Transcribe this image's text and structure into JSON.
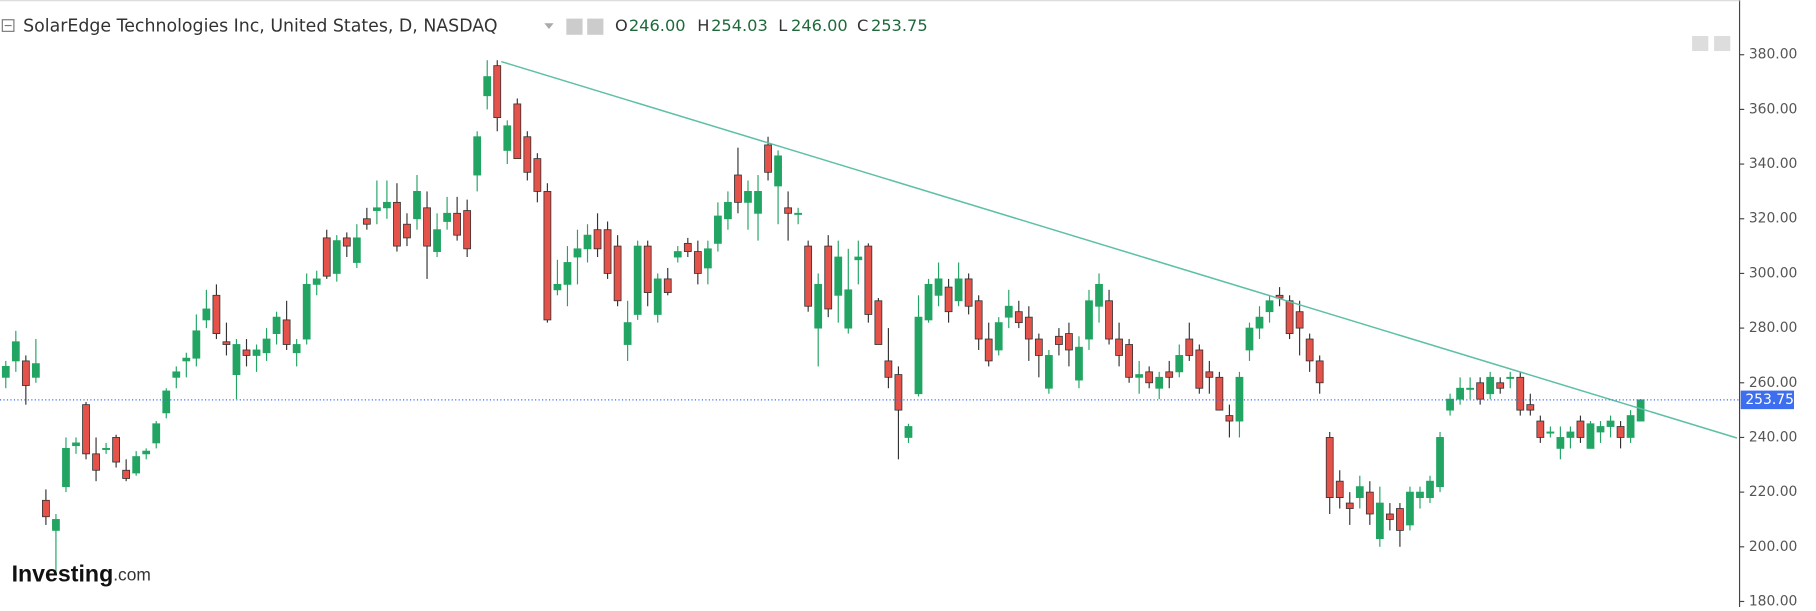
{
  "chart_data": {
    "type": "candlestick",
    "title": "SolarEdge Technologies Inc, United States, D, NASDAQ",
    "header": {
      "o_key": "O",
      "open": "246.00",
      "h_key": "H",
      "high": "254.03",
      "l_key": "L",
      "low": "246.00",
      "c_key": "C",
      "close": "253.75"
    },
    "logo": {
      "brand": "Investing",
      "suffix": ".com"
    },
    "up_color": "#22a463",
    "down_color": "#e5524a",
    "ylim": [
      178,
      400
    ],
    "yticks": [
      {
        "value": 180,
        "label": "180.00"
      },
      {
        "value": 200,
        "label": "200.00"
      },
      {
        "value": 220,
        "label": "220.00"
      },
      {
        "value": 240,
        "label": "240.00"
      },
      {
        "value": 260,
        "label": "260.00"
      },
      {
        "value": 280,
        "label": "280.00"
      },
      {
        "value": 300,
        "label": "300.00"
      },
      {
        "value": 320,
        "label": "320.00"
      },
      {
        "value": 340,
        "label": "340.00"
      },
      {
        "value": 360,
        "label": "360.00"
      },
      {
        "value": 380,
        "label": "380.00"
      }
    ],
    "trendline": {
      "x": [
        49.4,
        172.6
      ],
      "y": [
        377.5,
        239.8
      ],
      "color": "#5dbfa6"
    },
    "last_price_color": "#3d6ef0",
    "ohlc": [
      [
        262,
        268,
        258,
        266
      ],
      [
        268,
        279,
        264,
        275
      ],
      [
        268,
        270,
        252,
        259
      ],
      [
        262,
        276,
        260,
        267
      ],
      [
        217,
        221,
        208,
        211
      ],
      [
        206,
        212,
        191,
        210
      ],
      [
        222,
        240,
        220,
        236
      ],
      [
        237,
        240,
        234,
        238
      ],
      [
        252,
        253,
        232,
        234
      ],
      [
        234,
        240,
        224,
        228
      ],
      [
        236,
        238,
        234,
        236
      ],
      [
        240,
        241,
        229,
        231
      ],
      [
        228,
        232,
        224,
        225
      ],
      [
        227,
        235,
        226,
        233
      ],
      [
        234,
        236,
        232,
        235
      ],
      [
        238,
        246,
        236,
        245
      ],
      [
        249,
        258,
        247,
        257
      ],
      [
        262,
        266,
        258,
        264
      ],
      [
        268,
        271,
        262,
        269
      ],
      [
        269,
        285,
        266,
        279
      ],
      [
        283,
        294,
        280,
        287
      ],
      [
        292,
        296,
        276,
        278
      ],
      [
        275,
        282,
        270,
        274
      ],
      [
        263,
        276,
        254,
        274
      ],
      [
        272,
        276,
        266,
        270
      ],
      [
        270,
        274,
        264,
        272
      ],
      [
        271,
        280,
        268,
        276
      ],
      [
        278,
        286,
        274,
        284
      ],
      [
        283,
        290,
        272,
        274
      ],
      [
        271,
        276,
        266,
        274
      ],
      [
        276,
        300,
        274,
        296
      ],
      [
        296,
        301,
        292,
        298
      ],
      [
        313,
        316,
        298,
        299
      ],
      [
        300,
        314,
        297,
        312
      ],
      [
        313,
        315,
        306,
        310
      ],
      [
        304,
        318,
        302,
        313
      ],
      [
        320,
        324,
        316,
        318
      ],
      [
        323,
        334,
        318,
        324
      ],
      [
        324,
        334,
        320,
        326
      ],
      [
        326,
        333,
        308,
        310
      ],
      [
        318,
        322,
        310,
        313
      ],
      [
        320,
        336,
        316,
        330
      ],
      [
        324,
        330,
        298,
        310
      ],
      [
        308,
        322,
        306,
        316
      ],
      [
        319,
        328,
        316,
        322
      ],
      [
        322,
        328,
        312,
        314
      ],
      [
        323,
        327,
        306,
        309
      ],
      [
        336,
        352,
        330,
        350
      ],
      [
        365,
        378,
        360,
        372
      ],
      [
        376,
        378,
        352,
        357
      ],
      [
        345,
        356,
        340,
        354
      ],
      [
        362,
        364,
        342,
        342
      ],
      [
        350,
        352,
        334,
        337
      ],
      [
        342,
        344,
        326,
        330
      ],
      [
        330,
        333,
        282,
        283
      ],
      [
        294,
        305,
        292,
        296
      ],
      [
        296,
        310,
        288,
        304
      ],
      [
        306,
        316,
        296,
        309
      ],
      [
        309,
        318,
        304,
        314
      ],
      [
        316,
        322,
        306,
        309
      ],
      [
        316,
        319,
        298,
        300
      ],
      [
        310,
        314,
        288,
        290
      ],
      [
        274,
        290,
        268,
        282
      ],
      [
        285,
        312,
        283,
        310
      ],
      [
        310,
        312,
        288,
        293
      ],
      [
        285,
        300,
        282,
        298
      ],
      [
        298,
        302,
        292,
        293
      ],
      [
        306,
        310,
        304,
        308
      ],
      [
        311,
        313,
        306,
        308
      ],
      [
        308,
        312,
        296,
        300
      ],
      [
        302,
        312,
        296,
        309
      ],
      [
        311,
        326,
        308,
        321
      ],
      [
        320,
        330,
        316,
        326
      ],
      [
        336,
        346,
        322,
        326
      ],
      [
        326,
        334,
        316,
        330
      ],
      [
        322,
        336,
        312,
        330
      ],
      [
        347,
        350,
        334,
        337
      ],
      [
        332,
        345,
        318,
        343
      ],
      [
        324,
        330,
        312,
        322
      ],
      [
        322,
        324,
        318,
        322
      ],
      [
        310,
        312,
        286,
        288
      ],
      [
        280,
        300,
        266,
        296
      ],
      [
        310,
        314,
        284,
        287
      ],
      [
        292,
        312,
        282,
        306
      ],
      [
        280,
        309,
        278,
        294
      ],
      [
        305,
        312,
        296,
        306
      ],
      [
        310,
        311,
        282,
        285
      ],
      [
        290,
        291,
        274,
        274
      ],
      [
        268,
        280,
        258,
        262
      ],
      [
        263,
        266,
        232,
        250
      ],
      [
        240,
        245,
        238,
        244
      ],
      [
        256,
        292,
        255,
        284
      ],
      [
        283,
        298,
        282,
        296
      ],
      [
        292,
        304,
        288,
        298
      ],
      [
        295,
        298,
        282,
        286
      ],
      [
        290,
        304,
        288,
        298
      ],
      [
        298,
        300,
        285,
        288
      ],
      [
        290,
        292,
        272,
        276
      ],
      [
        276,
        282,
        266,
        268
      ],
      [
        272,
        284,
        270,
        282
      ],
      [
        284,
        294,
        280,
        288
      ],
      [
        286,
        290,
        280,
        282
      ],
      [
        284,
        288,
        268,
        276
      ],
      [
        276,
        278,
        262,
        270
      ],
      [
        258,
        272,
        256,
        270
      ],
      [
        277,
        280,
        270,
        274
      ],
      [
        278,
        282,
        266,
        272
      ],
      [
        261,
        277,
        258,
        273
      ],
      [
        276,
        294,
        272,
        290
      ],
      [
        288,
        300,
        282,
        296
      ],
      [
        290,
        294,
        274,
        276
      ],
      [
        276,
        282,
        266,
        270
      ],
      [
        274,
        276,
        260,
        262
      ],
      [
        262,
        268,
        256,
        263
      ],
      [
        264,
        266,
        258,
        260
      ],
      [
        258,
        264,
        254,
        262
      ],
      [
        264,
        268,
        258,
        262
      ],
      [
        264,
        274,
        262,
        270
      ],
      [
        276,
        282,
        268,
        270
      ],
      [
        272,
        274,
        256,
        258
      ],
      [
        264,
        268,
        256,
        262
      ],
      [
        262,
        264,
        250,
        250
      ],
      [
        248,
        252,
        240,
        246
      ],
      [
        246,
        264,
        240,
        262
      ],
      [
        272,
        282,
        268,
        280
      ],
      [
        280,
        288,
        276,
        284
      ],
      [
        286,
        292,
        282,
        290
      ],
      [
        292,
        295,
        288,
        291
      ],
      [
        290,
        292,
        276,
        278
      ],
      [
        286,
        290,
        270,
        280
      ],
      [
        276,
        278,
        264,
        268
      ],
      [
        268,
        270,
        256,
        260
      ],
      [
        240,
        242,
        212,
        218
      ],
      [
        224,
        228,
        214,
        218
      ],
      [
        216,
        220,
        208,
        214
      ],
      [
        218,
        226,
        214,
        222
      ],
      [
        220,
        224,
        208,
        212
      ],
      [
        203,
        222,
        200,
        216
      ],
      [
        212,
        216,
        206,
        210
      ],
      [
        214,
        216,
        200,
        206
      ],
      [
        208,
        222,
        206,
        220
      ],
      [
        218,
        222,
        214,
        220
      ],
      [
        218,
        226,
        216,
        224
      ],
      [
        222,
        242,
        220,
        240
      ],
      [
        250,
        256,
        248,
        254
      ],
      [
        254,
        262,
        252,
        258
      ],
      [
        258,
        262,
        254,
        258
      ],
      [
        260,
        262,
        252,
        254
      ],
      [
        256,
        264,
        254,
        262
      ],
      [
        260,
        262,
        256,
        258
      ],
      [
        262,
        264,
        258,
        262
      ],
      [
        262,
        264,
        248,
        250
      ],
      [
        252,
        256,
        248,
        250
      ],
      [
        246,
        248,
        238,
        240
      ],
      [
        242,
        244,
        240,
        242
      ],
      [
        236,
        244,
        232,
        240
      ],
      [
        240,
        244,
        236,
        242
      ],
      [
        246,
        248,
        238,
        240
      ],
      [
        236,
        246,
        236,
        245
      ],
      [
        242,
        246,
        238,
        244
      ],
      [
        244,
        248,
        240,
        246
      ],
      [
        244,
        246,
        236,
        240
      ],
      [
        240,
        250,
        238,
        248
      ],
      [
        246,
        254.03,
        246,
        253.75
      ]
    ]
  }
}
